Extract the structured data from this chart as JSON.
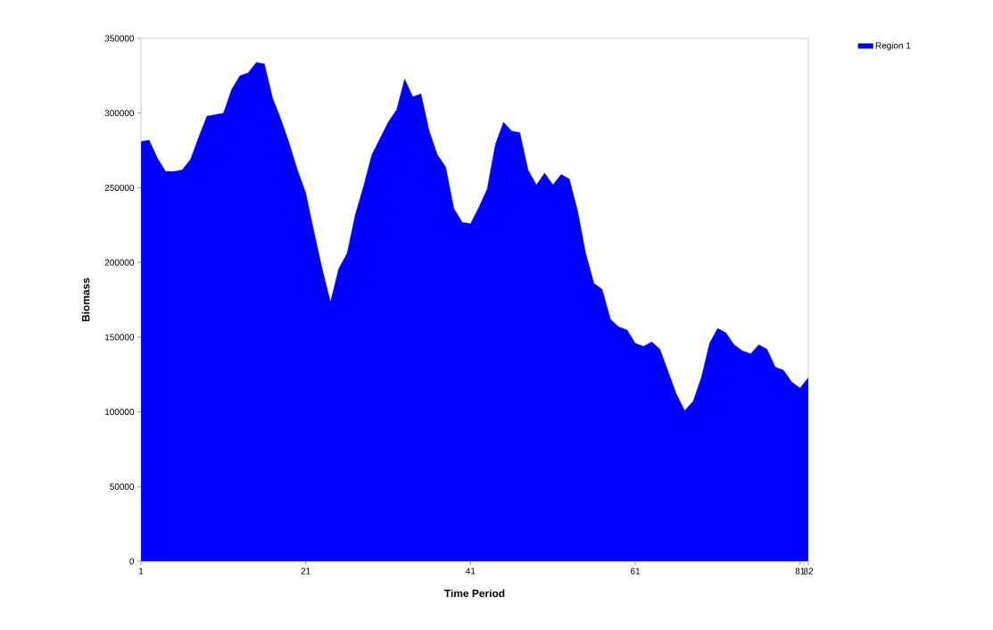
{
  "chart_data": {
    "type": "area",
    "xlabel": "Time Period",
    "ylabel": "Biomass",
    "x": [
      1,
      2,
      3,
      4,
      5,
      6,
      7,
      8,
      9,
      10,
      11,
      12,
      13,
      14,
      15,
      16,
      17,
      18,
      19,
      20,
      21,
      22,
      23,
      24,
      25,
      26,
      27,
      28,
      29,
      30,
      31,
      32,
      33,
      34,
      35,
      36,
      37,
      38,
      39,
      40,
      41,
      42,
      43,
      44,
      45,
      46,
      47,
      48,
      49,
      50,
      51,
      52,
      53,
      54,
      55,
      56,
      57,
      58,
      59,
      60,
      61,
      62,
      63,
      64,
      65,
      66,
      67,
      68,
      69,
      70,
      71,
      72,
      73,
      74,
      75,
      76,
      77,
      78,
      79,
      80,
      81,
      82
    ],
    "series": [
      {
        "name": "Region 1",
        "color": "#0000ff",
        "values": [
          281000,
          282000,
          270000,
          261000,
          261000,
          262000,
          269000,
          284000,
          298000,
          299000,
          300000,
          316000,
          325000,
          327000,
          334000,
          333000,
          310000,
          296000,
          280000,
          262000,
          247000,
          221000,
          196000,
          174000,
          196000,
          206000,
          232000,
          251000,
          272000,
          283000,
          294000,
          302000,
          323000,
          311000,
          313000,
          288000,
          272000,
          264000,
          236000,
          227000,
          226000,
          237000,
          249000,
          279000,
          294000,
          288000,
          287000,
          262000,
          252000,
          260000,
          252000,
          259000,
          256000,
          235000,
          206000,
          186000,
          182000,
          162000,
          157000,
          155000,
          146000,
          144000,
          147000,
          142000,
          127000,
          112000,
          101000,
          107000,
          123000,
          146000,
          156000,
          153000,
          145000,
          141000,
          139000,
          145000,
          142000,
          130000,
          128000,
          120000,
          116000,
          123000
        ]
      }
    ],
    "xlim": [
      1,
      82
    ],
    "ylim": [
      0,
      350000
    ],
    "xticks": [
      1,
      21,
      41,
      61,
      81,
      82
    ],
    "yticks": [
      0,
      50000,
      100000,
      150000,
      200000,
      250000,
      300000,
      350000
    ],
    "grid": false,
    "legend": "top right"
  }
}
